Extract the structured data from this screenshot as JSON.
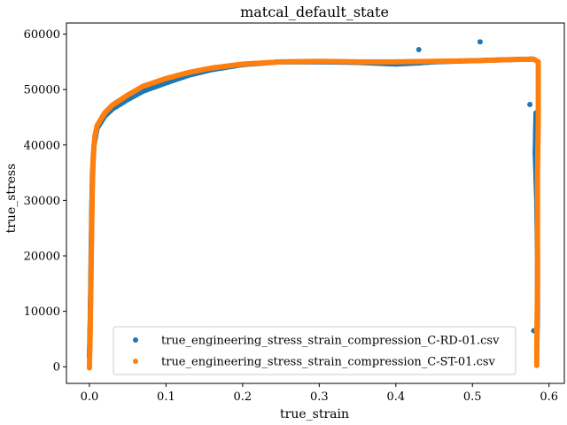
{
  "chart_data": {
    "type": "scatter",
    "title": "matcal_default_state",
    "xlabel": "true_strain",
    "ylabel": "true_stress",
    "xlim": [
      -0.03,
      0.62
    ],
    "ylim": [
      -3000,
      62000
    ],
    "xticks": [
      0.0,
      0.1,
      0.2,
      0.3,
      0.4,
      0.5,
      0.6
    ],
    "xtick_labels": [
      "0.0",
      "0.1",
      "0.2",
      "0.3",
      "0.4",
      "0.5",
      "0.6"
    ],
    "yticks": [
      0,
      10000,
      20000,
      30000,
      40000,
      50000,
      60000
    ],
    "ytick_labels": [
      "0",
      "10000",
      "20000",
      "30000",
      "40000",
      "50000",
      "60000"
    ],
    "grid": false,
    "legend_position": "lower-center",
    "series": [
      {
        "name": "true_engineering_stress_strain_compression_C-RD-01.csv",
        "color": "#1f77b4",
        "points": [
          [
            0.0,
            1800
          ],
          [
            0.001,
            8000
          ],
          [
            0.002,
            18000
          ],
          [
            0.003,
            28000
          ],
          [
            0.004,
            35000
          ],
          [
            0.006,
            40000
          ],
          [
            0.01,
            43000
          ],
          [
            0.02,
            45200
          ],
          [
            0.03,
            46500
          ],
          [
            0.05,
            48200
          ],
          [
            0.07,
            49700
          ],
          [
            0.1,
            51200
          ],
          [
            0.13,
            52600
          ],
          [
            0.16,
            53600
          ],
          [
            0.2,
            54500
          ],
          [
            0.25,
            55000
          ],
          [
            0.3,
            55000
          ],
          [
            0.35,
            54900
          ],
          [
            0.4,
            54600
          ],
          [
            0.43,
            54800
          ],
          [
            0.45,
            55000
          ],
          [
            0.5,
            55200
          ],
          [
            0.55,
            55400
          ],
          [
            0.58,
            55500
          ],
          [
            0.43,
            57200
          ],
          [
            0.51,
            58600
          ],
          [
            0.575,
            47300
          ],
          [
            0.583,
            45800
          ],
          [
            0.582,
            38500
          ],
          [
            0.584,
            30000
          ],
          [
            0.585,
            20000
          ],
          [
            0.585,
            10000
          ],
          [
            0.584,
            3000
          ],
          [
            0.58,
            6500
          ]
        ]
      },
      {
        "name": "true_engineering_stress_strain_compression_C-ST-01.csv",
        "color": "#ff7f0e",
        "points": [
          [
            0.0,
            -200
          ],
          [
            0.001,
            6000
          ],
          [
            0.002,
            15000
          ],
          [
            0.003,
            25000
          ],
          [
            0.004,
            33000
          ],
          [
            0.005,
            38000
          ],
          [
            0.007,
            41500
          ],
          [
            0.01,
            43500
          ],
          [
            0.02,
            45800
          ],
          [
            0.03,
            47200
          ],
          [
            0.05,
            49000
          ],
          [
            0.07,
            50600
          ],
          [
            0.1,
            52000
          ],
          [
            0.13,
            53100
          ],
          [
            0.16,
            53900
          ],
          [
            0.2,
            54600
          ],
          [
            0.25,
            55000
          ],
          [
            0.3,
            55100
          ],
          [
            0.35,
            55000
          ],
          [
            0.4,
            55000
          ],
          [
            0.45,
            55100
          ],
          [
            0.5,
            55200
          ],
          [
            0.55,
            55400
          ],
          [
            0.58,
            55500
          ],
          [
            0.586,
            55000
          ],
          [
            0.586,
            45000
          ],
          [
            0.585,
            35000
          ],
          [
            0.585,
            25000
          ],
          [
            0.585,
            15000
          ],
          [
            0.584,
            5000
          ],
          [
            0.584,
            0
          ]
        ]
      }
    ]
  }
}
